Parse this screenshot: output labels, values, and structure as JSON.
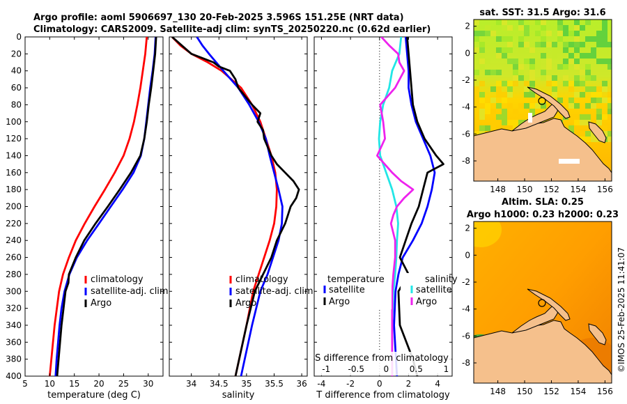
{
  "header": {
    "line1": "Argo profile: aoml 5906697_130 20-Feb-2025 3.596S 151.25E (NRT data)",
    "line2": "Climatology: CARS2009. Satellite-adj clim: synTS_20250220.nc (0.62d earlier)"
  },
  "colors": {
    "red": "#ff0000",
    "blue": "#0000ff",
    "black": "#000000",
    "cyan": "#22e6e6",
    "magenta": "#ee22ee"
  },
  "chart_data": [
    {
      "type": "line",
      "title": "",
      "xlabel": "temperature (deg C)",
      "ylabel": "",
      "xlim": [
        5,
        33
      ],
      "ylim": [
        400,
        0
      ],
      "xticks": [
        "5",
        "10",
        "15",
        "20",
        "25",
        "30"
      ],
      "xtick_values": [
        5,
        10,
        15,
        20,
        25,
        30
      ],
      "yticks": [
        "0",
        "20",
        "40",
        "60",
        "80",
        "100",
        "120",
        "140",
        "160",
        "180",
        "200",
        "220",
        "240",
        "260",
        "280",
        "300",
        "320",
        "340",
        "360",
        "380",
        "400"
      ],
      "ytick_values": [
        0,
        20,
        40,
        60,
        80,
        100,
        120,
        140,
        160,
        180,
        200,
        220,
        240,
        260,
        280,
        300,
        320,
        340,
        360,
        380,
        400
      ],
      "legend": [
        {
          "label": "climatology",
          "color": "#ff0000"
        },
        {
          "label": "satellite-adj. clim",
          "color": "#0000ff"
        },
        {
          "label": "Argo",
          "color": "#000000"
        }
      ],
      "series": [
        {
          "name": "climatology",
          "color": "#ff0000",
          "depth": [
            0,
            20,
            40,
            60,
            80,
            100,
            120,
            140,
            160,
            180,
            200,
            220,
            240,
            260,
            280,
            300,
            340,
            400
          ],
          "values": [
            29.7,
            29.4,
            28.9,
            28.4,
            27.8,
            27.1,
            26.2,
            25.0,
            23.2,
            21.2,
            19.1,
            17.1,
            15.3,
            13.9,
            12.7,
            11.9,
            11.0,
            10.0
          ]
        },
        {
          "name": "satellite-adj. clim",
          "color": "#0000ff",
          "depth": [
            0,
            20,
            40,
            60,
            80,
            100,
            120,
            140,
            160,
            180,
            200,
            220,
            240,
            260,
            280,
            300,
            320,
            340,
            360,
            380,
            400
          ],
          "values": [
            31.5,
            31.3,
            30.9,
            30.4,
            30.0,
            29.6,
            29.2,
            28.5,
            27.0,
            24.8,
            22.4,
            20.0,
            17.6,
            15.5,
            14.0,
            13.0,
            12.4,
            12.0,
            11.7,
            11.4,
            11.2
          ]
        },
        {
          "name": "Argo",
          "color": "#000000",
          "depth": [
            0,
            20,
            40,
            60,
            80,
            100,
            120,
            140,
            160,
            180,
            200,
            220,
            240,
            260,
            280,
            290,
            300,
            320,
            340,
            360,
            380,
            400
          ],
          "values": [
            31.6,
            31.4,
            31.0,
            30.6,
            30.1,
            29.7,
            29.2,
            28.4,
            26.5,
            24.2,
            21.8,
            19.3,
            17.0,
            15.3,
            13.9,
            13.8,
            13.2,
            12.8,
            12.4,
            12.1,
            11.8,
            11.5
          ]
        }
      ]
    },
    {
      "type": "line",
      "title": "",
      "xlabel": "salinity",
      "xlim": [
        33.6,
        36.1
      ],
      "ylim": [
        400,
        0
      ],
      "xticks": [
        "34",
        "34.5",
        "35",
        "35.5",
        "36"
      ],
      "xtick_values": [
        34,
        34.5,
        35,
        35.5,
        36
      ],
      "legend": [
        {
          "label": "climatology",
          "color": "#ff0000"
        },
        {
          "label": "satellite-adj. clim",
          "color": "#0000ff"
        },
        {
          "label": "Argo",
          "color": "#000000"
        }
      ],
      "series": [
        {
          "name": "climatology",
          "color": "#ff0000",
          "depth": [
            0,
            10,
            20,
            30,
            40,
            60,
            80,
            100,
            120,
            140,
            160,
            180,
            200,
            220,
            240,
            260,
            280,
            300,
            340,
            400
          ],
          "values": [
            33.65,
            33.8,
            34.0,
            34.3,
            34.55,
            34.9,
            35.1,
            35.25,
            35.35,
            35.45,
            35.52,
            35.55,
            35.54,
            35.5,
            35.42,
            35.32,
            35.22,
            35.12,
            35.0,
            34.8
          ]
        },
        {
          "name": "satellite-adj. clim",
          "color": "#0000ff",
          "depth": [
            0,
            10,
            20,
            30,
            40,
            60,
            80,
            100,
            120,
            140,
            160,
            180,
            200,
            220,
            240,
            260,
            280,
            300,
            340,
            400
          ],
          "values": [
            34.1,
            34.2,
            34.32,
            34.45,
            34.58,
            34.85,
            35.05,
            35.22,
            35.35,
            35.42,
            35.5,
            35.58,
            35.65,
            35.64,
            35.58,
            35.48,
            35.38,
            35.25,
            35.1,
            34.9
          ]
        },
        {
          "name": "Argo",
          "color": "#000000",
          "depth": [
            0,
            20,
            30,
            35,
            40,
            50,
            60,
            80,
            90,
            100,
            110,
            120,
            140,
            150,
            160,
            170,
            180,
            190,
            200,
            210,
            220,
            240,
            260,
            280,
            300,
            340,
            400
          ],
          "values": [
            33.65,
            34.0,
            34.4,
            34.5,
            34.7,
            34.8,
            34.85,
            35.1,
            35.25,
            35.2,
            35.3,
            35.32,
            35.45,
            35.55,
            35.7,
            35.85,
            35.95,
            35.9,
            35.8,
            35.75,
            35.7,
            35.55,
            35.45,
            35.3,
            35.15,
            35.0,
            34.8
          ]
        }
      ]
    },
    {
      "type": "line",
      "title": "",
      "xlabel": "T difference from climatology",
      "xlim": [
        -4.5,
        5.0
      ],
      "ylim": [
        400,
        0
      ],
      "xticks": [
        "-4",
        "-2",
        "0",
        "2",
        "4"
      ],
      "xtick_values": [
        -4,
        -2,
        0,
        2,
        4
      ],
      "top_axis_label": "S difference from climatology",
      "top_ticks": [
        "-1",
        "-0.5",
        "0",
        "0.5",
        "1"
      ],
      "top_tick_values": [
        -1,
        -0.5,
        0,
        0.5,
        1
      ],
      "legend_titles": [
        "temperature",
        "salinity"
      ],
      "legend": [
        {
          "label": "satellite",
          "color": "#0000ff"
        },
        {
          "label": "Argo",
          "color": "#000000"
        },
        {
          "label": "satellite",
          "color": "#22e6e6"
        },
        {
          "label": "Argo",
          "color": "#ee22ee"
        }
      ],
      "series": [
        {
          "name": "T satellite",
          "color": "#0000ff",
          "depth": [
            0,
            20,
            40,
            60,
            80,
            100,
            120,
            140,
            160,
            180,
            200,
            220,
            240,
            260,
            280,
            300,
            340,
            400
          ],
          "values": [
            1.8,
            1.9,
            2.0,
            2.0,
            2.2,
            2.5,
            3.0,
            3.5,
            3.8,
            3.6,
            3.3,
            2.9,
            2.3,
            1.6,
            1.3,
            1.1,
            1.0,
            1.2
          ]
        },
        {
          "name": "T Argo",
          "color": "#000000",
          "depth": [
            0,
            20,
            40,
            60,
            80,
            100,
            120,
            140,
            150,
            160,
            180,
            200,
            220,
            240,
            260,
            280,
            300,
            340,
            380,
            400
          ],
          "values": [
            1.9,
            2.0,
            2.1,
            2.2,
            2.3,
            2.6,
            3.1,
            3.9,
            4.4,
            3.3,
            3.0,
            2.7,
            2.2,
            1.8,
            1.4,
            2.0,
            1.3,
            1.4,
            2.3,
            2.6
          ]
        },
        {
          "name": "S satellite",
          "color": "#22e6e6",
          "axis": "top",
          "depth": [
            0,
            20,
            40,
            60,
            80,
            100,
            120,
            140,
            160,
            180,
            200,
            220,
            240,
            260,
            280,
            300,
            340,
            400
          ],
          "values": [
            0.25,
            0.22,
            0.1,
            0.05,
            -0.05,
            -0.1,
            -0.12,
            -0.1,
            0.0,
            0.1,
            0.17,
            0.2,
            0.18,
            0.17,
            0.15,
            0.12,
            0.1,
            0.1
          ]
        },
        {
          "name": "S Argo",
          "color": "#ee22ee",
          "axis": "top",
          "depth": [
            0,
            10,
            20,
            30,
            40,
            60,
            80,
            100,
            120,
            140,
            160,
            170,
            180,
            190,
            200,
            210,
            220,
            240,
            260,
            280,
            300,
            340,
            400
          ],
          "values": [
            -0.08,
            0.05,
            0.2,
            0.22,
            0.3,
            0.15,
            -0.1,
            -0.05,
            -0.02,
            -0.15,
            0.1,
            0.25,
            0.45,
            0.3,
            0.18,
            0.12,
            0.08,
            0.15,
            0.15,
            0.12,
            0.1,
            0.1,
            0.1
          ]
        }
      ]
    },
    {
      "type": "heatmap",
      "title": "sat. SST: 31.5 Argo: 31.6",
      "xticks": [
        "148",
        "150",
        "152",
        "154",
        "156"
      ],
      "xtick_values": [
        148,
        150,
        152,
        154,
        156
      ],
      "yticks": [
        "2",
        "0",
        "-2",
        "-4",
        "-6",
        "-8"
      ],
      "ytick_values": [
        2,
        0,
        -2,
        -4,
        -6,
        -8
      ],
      "xlim": [
        146.2,
        156.5
      ],
      "ylim": [
        -9.5,
        2.5
      ],
      "marker": {
        "lon": 151.25,
        "lat": -3.6
      }
    },
    {
      "type": "heatmap",
      "title_line1": "Altim. SLA: 0.25",
      "title_line2": "Argo h1000: 0.23 h2000: 0.23",
      "xticks": [
        "148",
        "150",
        "152",
        "154",
        "156"
      ],
      "xtick_values": [
        148,
        150,
        152,
        154,
        156
      ],
      "yticks": [
        "2",
        "0",
        "-2",
        "-4",
        "-6",
        "-8"
      ],
      "ytick_values": [
        2,
        0,
        -2,
        -4,
        -6,
        -8
      ],
      "xlim": [
        146.2,
        156.5
      ],
      "ylim": [
        -9.5,
        2.5
      ],
      "marker": {
        "lon": 151.25,
        "lat": -3.6
      }
    }
  ],
  "footer": {
    "credit": "©IMOS 25-Feb-2025 11:41:07"
  }
}
